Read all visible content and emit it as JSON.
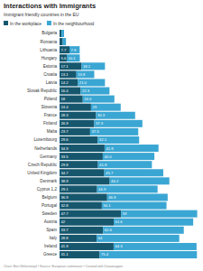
{
  "chart_data": {
    "type": "bar",
    "orientation": "horizontal",
    "stacked": true,
    "data_labels": true,
    "tick_labels": "y",
    "grid": false,
    "title": "Interactions with Immigrants",
    "subtitle": "Immigrant friendly countries in the EU",
    "footer": "Chart: Bert Sihlestorijal • Source: European commision • Created with Datawrapper",
    "categories": [
      "Bulgaria",
      "Romania",
      "Lithuania",
      "Hungary",
      "Estonia",
      "Croatia",
      "Latvia",
      "Slovak Republic",
      "Poland",
      "Slovenia",
      "France",
      "Finland",
      "Malta",
      "Luxembourg",
      "Netherlands",
      "Germany",
      "Czech Republic",
      "United Kingdom",
      "Denmark",
      "Cyprus 1,2",
      "Belgium",
      "Portugal",
      "Sweden",
      "Austria",
      "Spain",
      "Italy",
      "Ireland",
      "Greece"
    ],
    "xlim": [
      0,
      107
    ],
    "series": [
      {
        "name": "In the workplace",
        "color": "#16576e",
        "values": [
          1.5,
          2.5,
          7.7,
          5.6,
          17.1,
          13.1,
          14.2,
          16.4,
          18,
          24.4,
          28.3,
          26.9,
          23.7,
          29.6,
          34.9,
          33.5,
          29.8,
          34.7,
          38.9,
          29.1,
          36.9,
          32.8,
          47.7,
          42,
          33.7,
          28.8,
          41.9,
          31.1
        ],
        "value_labels": [
          null,
          null,
          "7.7",
          "5.6",
          "17.1",
          "13.1",
          "14.2",
          "16.4",
          "18",
          "24.4",
          "28.3",
          "26.9",
          "23.7",
          "29.6",
          "34.9",
          "33.5",
          "29.8",
          "34.7",
          "38.9",
          "29.1",
          "36.9",
          "32.8",
          "47.7",
          "42",
          "33.7",
          "28.8",
          "41.9",
          "31.1"
        ]
      },
      {
        "name": "In the neighbourhood",
        "color": "#3aa6d3",
        "values": [
          2,
          2.5,
          7.9,
          10.1,
          18.1,
          13.8,
          21.0,
          22.3,
          24.5,
          23,
          30.3,
          37.3,
          37.3,
          32.1,
          41.8,
          40.0,
          41.8,
          45.7,
          46.2,
          46.9,
          46.9,
          50.1,
          59,
          61.6,
          62.6,
          64,
          64.3,
          75.4
        ],
        "value_labels": [
          null,
          null,
          "7.9",
          "10.1",
          "18.1",
          "13.8",
          "21.0",
          "22.3",
          "24.5",
          "23",
          "30.3",
          "37.3",
          "37.3",
          "32.1",
          "41.8",
          "40.0",
          "41.8",
          "45.7",
          "46.2",
          "46.9",
          "46.9",
          "50.1",
          "59",
          "61.6",
          "62.6",
          "64",
          "64.3",
          "75.4"
        ]
      }
    ]
  }
}
